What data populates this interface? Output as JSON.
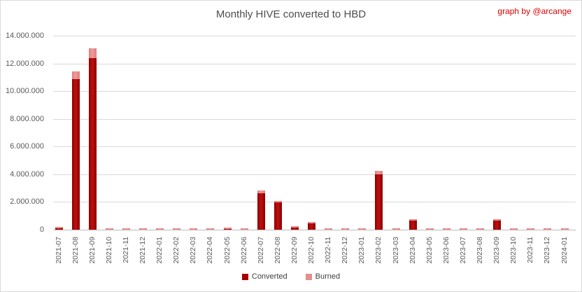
{
  "chart": {
    "title": "Monthly HIVE converted to HBD",
    "watermark": "graph by @arcange",
    "colors": {
      "converted": "#a80000",
      "burned": "#e58c8c",
      "gridline": "#d9d9d9",
      "axis_text": "#595959",
      "title_text": "#4d4d4d",
      "watermark_red": "#e00000"
    }
  },
  "chart_data": {
    "type": "bar",
    "stacked": true,
    "title": "Monthly HIVE converted to HBD",
    "xlabel": "",
    "ylabel": "",
    "ylim": [
      0,
      14000000
    ],
    "grid": true,
    "legend_position": "bottom",
    "categories": [
      "2021-07",
      "2021-08",
      "2021-09",
      "2021-10",
      "2021-11",
      "2021-12",
      "2022-01",
      "2022-02",
      "2022-03",
      "2022-04",
      "2022-05",
      "2022-06",
      "2022-07",
      "2022-08",
      "2022-09",
      "2022-10",
      "2022-11",
      "2022-12",
      "2023-01",
      "2023-02",
      "2023-03",
      "2023-04",
      "2023-05",
      "2023-06",
      "2023-07",
      "2023-08",
      "2023-09",
      "2023-10",
      "2023-11",
      "2023-12",
      "2024-01"
    ],
    "series": [
      {
        "name": "Converted",
        "color": "#a80000",
        "values": [
          100000,
          10850000,
          12400000,
          0,
          0,
          0,
          0,
          0,
          0,
          0,
          60000,
          0,
          2620000,
          1980000,
          170000,
          430000,
          0,
          0,
          0,
          4000000,
          0,
          650000,
          0,
          0,
          0,
          0,
          670000,
          0,
          0,
          0,
          0
        ]
      },
      {
        "name": "Burned",
        "color": "#e58c8c",
        "values": [
          30000,
          580000,
          670000,
          30000,
          30000,
          30000,
          30000,
          30000,
          30000,
          30000,
          20000,
          30000,
          200000,
          90000,
          20000,
          40000,
          30000,
          30000,
          30000,
          250000,
          30000,
          30000,
          30000,
          30000,
          30000,
          30000,
          30000,
          30000,
          30000,
          30000,
          30000
        ]
      }
    ],
    "y_ticks": [
      {
        "value": 0,
        "label": "0"
      },
      {
        "value": 2000000,
        "label": "2.000.000"
      },
      {
        "value": 4000000,
        "label": "4.000.000"
      },
      {
        "value": 6000000,
        "label": "6.000.000"
      },
      {
        "value": 8000000,
        "label": "8.000.000"
      },
      {
        "value": 10000000,
        "label": "10.000.000"
      },
      {
        "value": 12000000,
        "label": "12.000.000"
      },
      {
        "value": 14000000,
        "label": "14.000.000"
      }
    ]
  }
}
